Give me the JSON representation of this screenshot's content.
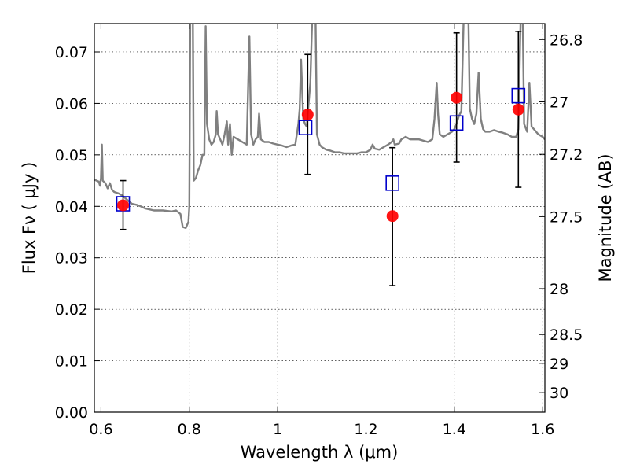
{
  "chart_data": {
    "type": "scatter",
    "xlabel": "Wavelength  λ (μm)",
    "ylabel": "Flux  Fν  ( μJy )",
    "y2label": "Magnitude (AB)",
    "xlim": [
      0.585,
      1.605
    ],
    "ylim": [
      0.0,
      0.0755
    ],
    "grid": true,
    "x_ticks": [
      {
        "value": 0.6,
        "label": "0.6"
      },
      {
        "value": 0.8,
        "label": "0.8"
      },
      {
        "value": 1.0,
        "label": "1"
      },
      {
        "value": 1.2,
        "label": "1.2"
      },
      {
        "value": 1.4,
        "label": "1.4"
      },
      {
        "value": 1.6,
        "label": "1.6"
      }
    ],
    "y_ticks": [
      {
        "value": 0.0,
        "label": "0.00"
      },
      {
        "value": 0.01,
        "label": "0.01"
      },
      {
        "value": 0.02,
        "label": "0.02"
      },
      {
        "value": 0.03,
        "label": "0.03"
      },
      {
        "value": 0.04,
        "label": "0.04"
      },
      {
        "value": 0.05,
        "label": "0.05"
      },
      {
        "value": 0.06,
        "label": "0.06"
      },
      {
        "value": 0.07,
        "label": "0.07"
      }
    ],
    "y2_ticks": [
      {
        "flux": 0.0724,
        "label": "26.8"
      },
      {
        "flux": 0.0603,
        "label": "27"
      },
      {
        "flux": 0.0501,
        "label": "27.2"
      },
      {
        "flux": 0.038,
        "label": "27.5"
      },
      {
        "flux": 0.024,
        "label": "28"
      },
      {
        "flux": 0.0151,
        "label": "28.5"
      },
      {
        "flux": 0.0095,
        "label": "29"
      },
      {
        "flux": 0.0038,
        "label": "30"
      }
    ],
    "series": [
      {
        "kind": "spectrum",
        "color": "#808080",
        "points": [
          [
            0.585,
            0.0452
          ],
          [
            0.595,
            0.0448
          ],
          [
            0.598,
            0.044
          ],
          [
            0.6,
            0.0455
          ],
          [
            0.602,
            0.052
          ],
          [
            0.604,
            0.045
          ],
          [
            0.61,
            0.0445
          ],
          [
            0.615,
            0.0435
          ],
          [
            0.62,
            0.0445
          ],
          [
            0.625,
            0.0432
          ],
          [
            0.63,
            0.0428
          ],
          [
            0.64,
            0.0425
          ],
          [
            0.65,
            0.042
          ],
          [
            0.66,
            0.0412
          ],
          [
            0.67,
            0.0405
          ],
          [
            0.68,
            0.0403
          ],
          [
            0.69,
            0.04
          ],
          [
            0.7,
            0.0396
          ],
          [
            0.72,
            0.0392
          ],
          [
            0.74,
            0.0392
          ],
          [
            0.76,
            0.039
          ],
          [
            0.77,
            0.0392
          ],
          [
            0.78,
            0.0385
          ],
          [
            0.785,
            0.036
          ],
          [
            0.792,
            0.0358
          ],
          [
            0.798,
            0.037
          ],
          [
            0.8,
            0.04
          ],
          [
            0.802,
            0.076
          ],
          [
            0.808,
            0.076
          ],
          [
            0.81,
            0.045
          ],
          [
            0.815,
            0.0455
          ],
          [
            0.82,
            0.047
          ],
          [
            0.825,
            0.048
          ],
          [
            0.83,
            0.05
          ],
          [
            0.834,
            0.05
          ],
          [
            0.837,
            0.075
          ],
          [
            0.84,
            0.056
          ],
          [
            0.845,
            0.053
          ],
          [
            0.85,
            0.052
          ],
          [
            0.855,
            0.0525
          ],
          [
            0.86,
            0.054
          ],
          [
            0.862,
            0.0585
          ],
          [
            0.865,
            0.054
          ],
          [
            0.87,
            0.053
          ],
          [
            0.875,
            0.052
          ],
          [
            0.88,
            0.054
          ],
          [
            0.885,
            0.0565
          ],
          [
            0.888,
            0.052
          ],
          [
            0.892,
            0.056
          ],
          [
            0.896,
            0.05
          ],
          [
            0.9,
            0.0535
          ],
          [
            0.91,
            0.053
          ],
          [
            0.92,
            0.0525
          ],
          [
            0.93,
            0.052
          ],
          [
            0.936,
            0.073
          ],
          [
            0.94,
            0.054
          ],
          [
            0.945,
            0.052
          ],
          [
            0.95,
            0.053
          ],
          [
            0.955,
            0.0535
          ],
          [
            0.958,
            0.058
          ],
          [
            0.962,
            0.053
          ],
          [
            0.97,
            0.0525
          ],
          [
            0.98,
            0.0525
          ],
          [
            0.99,
            0.0522
          ],
          [
            1.0,
            0.052
          ],
          [
            1.01,
            0.0518
          ],
          [
            1.02,
            0.0515
          ],
          [
            1.03,
            0.0518
          ],
          [
            1.04,
            0.052
          ],
          [
            1.047,
            0.056
          ],
          [
            1.05,
            0.059
          ],
          [
            1.053,
            0.0685
          ],
          [
            1.058,
            0.057
          ],
          [
            1.062,
            0.056
          ],
          [
            1.066,
            0.0555
          ],
          [
            1.07,
            0.06
          ],
          [
            1.074,
            0.064
          ],
          [
            1.078,
            0.076
          ],
          [
            1.086,
            0.076
          ],
          [
            1.089,
            0.054
          ],
          [
            1.095,
            0.052
          ],
          [
            1.1,
            0.0515
          ],
          [
            1.11,
            0.051
          ],
          [
            1.12,
            0.0508
          ],
          [
            1.13,
            0.0505
          ],
          [
            1.14,
            0.0505
          ],
          [
            1.15,
            0.0503
          ],
          [
            1.16,
            0.0503
          ],
          [
            1.17,
            0.0503
          ],
          [
            1.18,
            0.0503
          ],
          [
            1.19,
            0.0505
          ],
          [
            1.2,
            0.0505
          ],
          [
            1.21,
            0.051
          ],
          [
            1.215,
            0.052
          ],
          [
            1.22,
            0.0512
          ],
          [
            1.23,
            0.051
          ],
          [
            1.24,
            0.0515
          ],
          [
            1.25,
            0.052
          ],
          [
            1.258,
            0.0525
          ],
          [
            1.262,
            0.053
          ],
          [
            1.265,
            0.052
          ],
          [
            1.275,
            0.0522
          ],
          [
            1.28,
            0.053
          ],
          [
            1.29,
            0.0535
          ],
          [
            1.3,
            0.053
          ],
          [
            1.32,
            0.053
          ],
          [
            1.34,
            0.0525
          ],
          [
            1.35,
            0.053
          ],
          [
            1.355,
            0.057
          ],
          [
            1.36,
            0.064
          ],
          [
            1.363,
            0.058
          ],
          [
            1.367,
            0.054
          ],
          [
            1.375,
            0.0535
          ],
          [
            1.385,
            0.054
          ],
          [
            1.395,
            0.0545
          ],
          [
            1.4,
            0.055
          ],
          [
            1.405,
            0.056
          ],
          [
            1.41,
            0.0575
          ],
          [
            1.416,
            0.0585
          ],
          [
            1.421,
            0.076
          ],
          [
            1.432,
            0.076
          ],
          [
            1.435,
            0.059
          ],
          [
            1.44,
            0.057
          ],
          [
            1.445,
            0.056
          ],
          [
            1.45,
            0.058
          ],
          [
            1.455,
            0.066
          ],
          [
            1.46,
            0.057
          ],
          [
            1.465,
            0.055
          ],
          [
            1.47,
            0.0545
          ],
          [
            1.48,
            0.0545
          ],
          [
            1.49,
            0.0548
          ],
          [
            1.5,
            0.0545
          ],
          [
            1.51,
            0.0543
          ],
          [
            1.52,
            0.054
          ],
          [
            1.53,
            0.0535
          ],
          [
            1.54,
            0.0535
          ],
          [
            1.545,
            0.055
          ],
          [
            1.55,
            0.076
          ],
          [
            1.555,
            0.076
          ],
          [
            1.558,
            0.056
          ],
          [
            1.565,
            0.0545
          ],
          [
            1.57,
            0.064
          ],
          [
            1.575,
            0.0555
          ],
          [
            1.58,
            0.055
          ],
          [
            1.59,
            0.054
          ],
          [
            1.6,
            0.0535
          ],
          [
            1.605,
            0.053
          ]
        ]
      },
      {
        "kind": "observed",
        "color": "#ff0000",
        "points": [
          {
            "x": 0.65,
            "y": 0.0402,
            "yerr_low": 0.0355,
            "yerr_high": 0.045
          },
          {
            "x": 1.068,
            "y": 0.0578,
            "yerr_low": 0.0462,
            "yerr_high": 0.0695
          },
          {
            "x": 1.26,
            "y": 0.0381,
            "yerr_low": 0.0246,
            "yerr_high": 0.0514
          },
          {
            "x": 1.405,
            "y": 0.0611,
            "yerr_low": 0.0486,
            "yerr_high": 0.0737
          },
          {
            "x": 1.545,
            "y": 0.0588,
            "yerr_low": 0.0437,
            "yerr_high": 0.074
          }
        ]
      },
      {
        "kind": "model",
        "color": "#0000cc",
        "points": [
          {
            "x": 0.65,
            "y": 0.0405
          },
          {
            "x": 1.063,
            "y": 0.0553
          },
          {
            "x": 1.26,
            "y": 0.0445
          },
          {
            "x": 1.405,
            "y": 0.0562
          },
          {
            "x": 1.545,
            "y": 0.0615
          }
        ]
      }
    ]
  }
}
